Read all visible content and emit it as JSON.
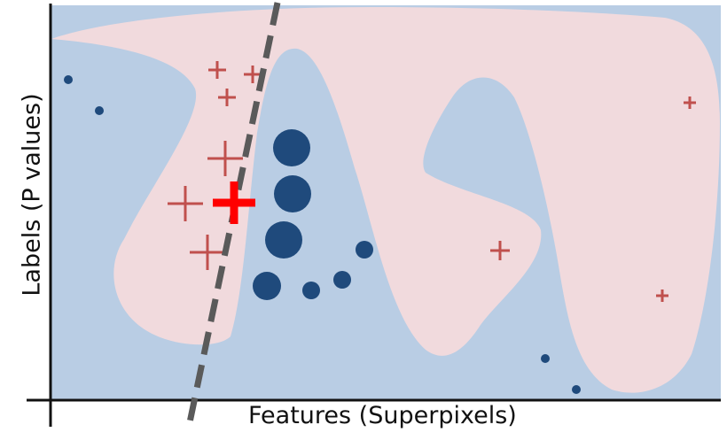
{
  "labels": {
    "x_axis": "Features (Superpixels)",
    "y_axis": "Labels (P values)"
  },
  "colors": {
    "background_region": "#b9cde4",
    "foreground_region": "#f1dadd",
    "circle": "#1f4a7c",
    "plus": "#c0504d",
    "highlight_plus": "#ff0000",
    "boundary_line": "#5a5a5a",
    "axis": "#111111"
  },
  "legend": []
}
